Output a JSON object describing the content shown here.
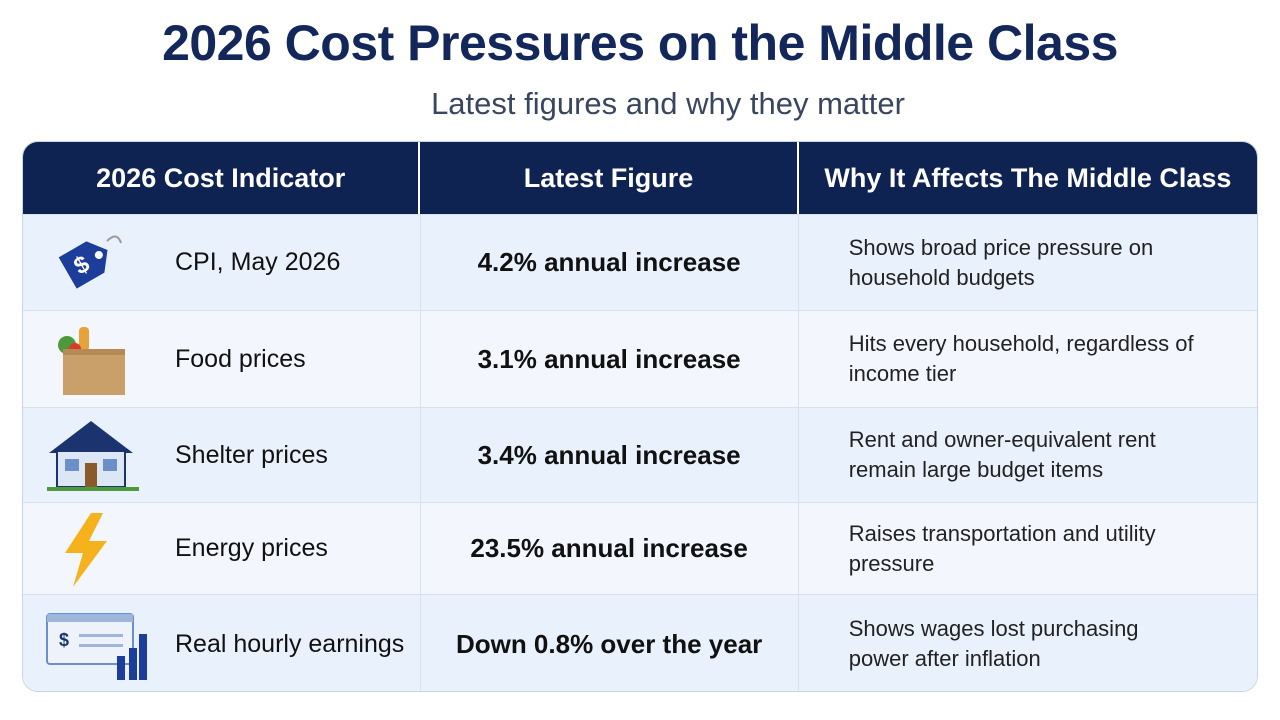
{
  "header": {
    "title": "2026 Cost Pressures on the Middle Class",
    "subtitle": "Latest figures and why they matter"
  },
  "table": {
    "columns": [
      "2026 Cost Indicator",
      "Latest Figure",
      "Why It Affects The Middle Class"
    ],
    "rows": [
      [
        "CPI, May 2026",
        "4.2% annual increase",
        "Shows broad price pressure on household budgets"
      ],
      [
        "Food prices",
        "3.1% annual increase",
        "Hits every household, regardless of income tier"
      ],
      [
        "Shelter prices",
        "3.4% annual increase",
        "Rent and owner-equivalent rent remain large budget items"
      ],
      [
        "Energy prices",
        "23.5% annual increase",
        "Raises transportation and utility pressure"
      ],
      [
        "Real hourly earnings",
        "Down 0.8% over the year",
        "Shows wages lost purchasing power after inflation"
      ]
    ]
  }
}
